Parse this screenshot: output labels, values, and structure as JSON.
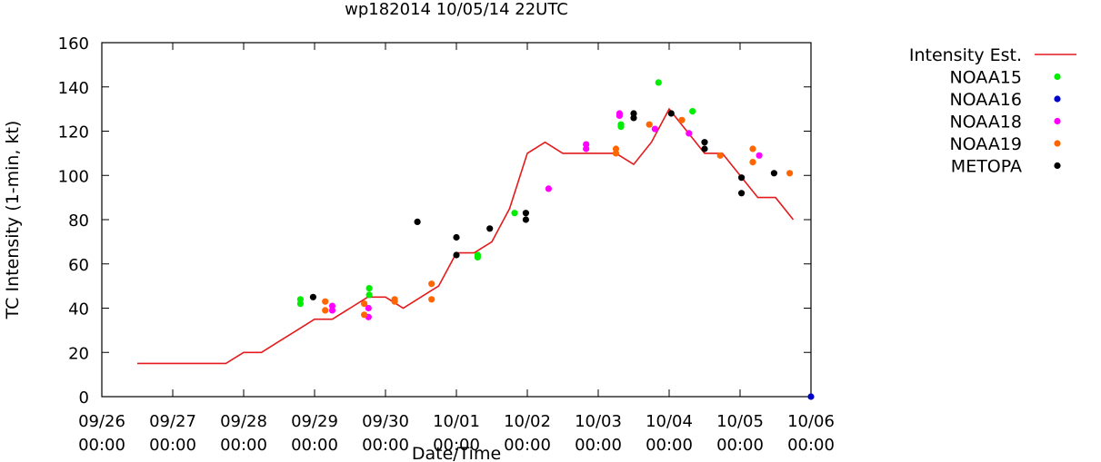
{
  "chart_data": {
    "type": "line",
    "title": "wp182014 10/05/14 22UTC",
    "xlabel": "Date/Time",
    "ylabel": "TC Intensity (1-min, kt)",
    "ylim": [
      0,
      160
    ],
    "yticks": [
      0,
      20,
      40,
      60,
      80,
      100,
      120,
      140,
      160
    ],
    "xlim": [
      0,
      10
    ],
    "xticks": [
      {
        "x": 0,
        "date": "09/26",
        "time": "00:00"
      },
      {
        "x": 1,
        "date": "09/27",
        "time": "00:00"
      },
      {
        "x": 2,
        "date": "09/28",
        "time": "00:00"
      },
      {
        "x": 3,
        "date": "09/29",
        "time": "00:00"
      },
      {
        "x": 4,
        "date": "09/30",
        "time": "00:00"
      },
      {
        "x": 5,
        "date": "10/01",
        "time": "00:00"
      },
      {
        "x": 6,
        "date": "10/02",
        "time": "00:00"
      },
      {
        "x": 7,
        "date": "10/03",
        "time": "00:00"
      },
      {
        "x": 8,
        "date": "10/04",
        "time": "00:00"
      },
      {
        "x": 9,
        "date": "10/05",
        "time": "00:00"
      },
      {
        "x": 10,
        "date": "10/06",
        "time": "00:00"
      }
    ],
    "x_units": "days since 09/26 00:00",
    "legend": "right",
    "series": [
      {
        "name": "Intensity Est.",
        "kind": "line",
        "color": "#e41a1c",
        "points": [
          [
            0.5,
            15
          ],
          [
            1.75,
            15
          ],
          [
            2.0,
            20
          ],
          [
            2.25,
            20
          ],
          [
            2.5,
            25
          ],
          [
            2.75,
            30
          ],
          [
            3.0,
            35
          ],
          [
            3.25,
            35
          ],
          [
            3.5,
            40
          ],
          [
            3.75,
            45
          ],
          [
            4.0,
            45
          ],
          [
            4.25,
            40
          ],
          [
            4.5,
            45
          ],
          [
            4.75,
            50
          ],
          [
            5.0,
            65
          ],
          [
            5.25,
            65
          ],
          [
            5.5,
            70
          ],
          [
            5.75,
            85
          ],
          [
            6.0,
            110
          ],
          [
            6.25,
            115
          ],
          [
            6.5,
            110
          ],
          [
            6.75,
            110
          ],
          [
            7.0,
            110
          ],
          [
            7.25,
            110
          ],
          [
            7.5,
            105
          ],
          [
            7.75,
            115
          ],
          [
            8.0,
            130
          ],
          [
            8.25,
            120
          ],
          [
            8.5,
            110
          ],
          [
            8.75,
            110
          ],
          [
            9.0,
            100
          ],
          [
            9.25,
            90
          ],
          [
            9.5,
            90
          ],
          [
            9.75,
            80
          ]
        ]
      },
      {
        "name": "NOAA15",
        "kind": "points",
        "color": "#00ee00",
        "points": [
          [
            2.8,
            44
          ],
          [
            2.8,
            42
          ],
          [
            3.77,
            49
          ],
          [
            3.77,
            46
          ],
          [
            5.3,
            64
          ],
          [
            5.3,
            63
          ],
          [
            5.82,
            83
          ],
          [
            7.32,
            123
          ],
          [
            7.32,
            122
          ],
          [
            7.85,
            142
          ],
          [
            8.33,
            129
          ]
        ]
      },
      {
        "name": "NOAA16",
        "kind": "points",
        "color": "#0000cc",
        "points": [
          [
            10.0,
            0
          ]
        ]
      },
      {
        "name": "NOAA18",
        "kind": "points",
        "color": "#ff00ff",
        "points": [
          [
            3.25,
            41
          ],
          [
            3.25,
            39
          ],
          [
            3.76,
            40
          ],
          [
            3.76,
            36
          ],
          [
            6.3,
            94
          ],
          [
            6.83,
            114
          ],
          [
            6.83,
            112
          ],
          [
            7.3,
            128
          ],
          [
            7.3,
            127
          ],
          [
            7.8,
            121
          ],
          [
            8.28,
            119
          ],
          [
            9.27,
            109
          ]
        ]
      },
      {
        "name": "NOAA19",
        "kind": "points",
        "color": "#ff6600",
        "points": [
          [
            3.15,
            43
          ],
          [
            3.15,
            39
          ],
          [
            3.7,
            42
          ],
          [
            3.7,
            37
          ],
          [
            4.13,
            44
          ],
          [
            4.13,
            43
          ],
          [
            4.65,
            51
          ],
          [
            4.65,
            44
          ],
          [
            7.25,
            112
          ],
          [
            7.25,
            110
          ],
          [
            7.72,
            123
          ],
          [
            8.18,
            125
          ],
          [
            8.72,
            109
          ],
          [
            9.18,
            112
          ],
          [
            9.18,
            106
          ],
          [
            9.7,
            101
          ]
        ]
      },
      {
        "name": "METOPA",
        "kind": "points",
        "color": "#000000",
        "points": [
          [
            2.98,
            45
          ],
          [
            4.45,
            79
          ],
          [
            5.0,
            72
          ],
          [
            5.0,
            64
          ],
          [
            5.47,
            76
          ],
          [
            5.98,
            83
          ],
          [
            5.98,
            80
          ],
          [
            7.5,
            128
          ],
          [
            7.5,
            126
          ],
          [
            8.03,
            128
          ],
          [
            8.5,
            115
          ],
          [
            8.5,
            112
          ],
          [
            9.02,
            99
          ],
          [
            9.02,
            92
          ],
          [
            9.48,
            101
          ]
        ]
      }
    ]
  }
}
